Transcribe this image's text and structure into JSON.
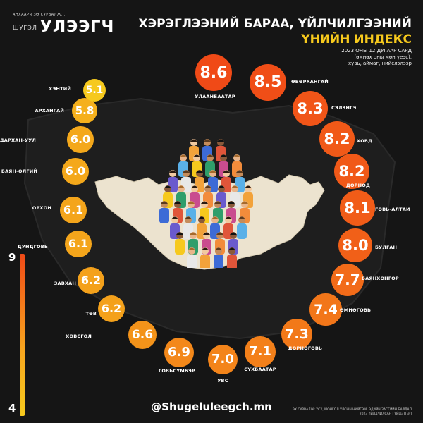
{
  "brand": {
    "tagline": "АНХААРЧ ЗӨ СУРВАЛЖ...",
    "prefix": "ШУГЭЛ",
    "name": "УЛЭЭГЧ"
  },
  "header": {
    "title_line1": "ХЭРЭГЛЭЭНИЙ БАРАА, ҮЙЛЧИЛГЭЭНИЙ",
    "title_line2": "ҮНИЙН ИНДЕКС",
    "subtitle_line1": "2023 ОНЫ 12 ДУГААР САРД",
    "subtitle_line2": "(өмнөх оны мөн үеэс),",
    "subtitle_line3": "хувь, аймаг, нийслэлээр"
  },
  "scale": {
    "max": "9",
    "min": "4"
  },
  "chart_data": {
    "type": "bubble",
    "title": "ХЭРЭГЛЭЭНИЙ БАРАА, ҮЙЛЧИЛГЭЭНИЙ ҮНИЙН ИНДЕКС",
    "unit": "хувь",
    "scale_range": [
      4,
      9
    ],
    "categories": [
      "УЛААНБААТАР",
      "ӨВӨРХАНГАЙ",
      "СЭЛЭНГЭ",
      "ХОВД",
      "ДОРНОД",
      "ГОВЬ-АЛТАЙ",
      "БУЛГАН",
      "БАЯНХОНГОР",
      "ӨМНӨГОВЬ",
      "ДОРНОГОВЬ",
      "СҮХБААТАР",
      "УВС",
      "ГОВЬСҮМБЭР",
      "ХӨВСГӨЛ",
      "ТӨВ",
      "ЗАВХАН",
      "ДУНДГОВЬ",
      "ОРХОН",
      "БАЯН-ӨЛГИЙ",
      "ДАРХАН-УУЛ",
      "АРХАНГАЙ",
      "ХЭНТИЙ"
    ],
    "values": [
      8.6,
      8.5,
      8.3,
      8.2,
      8.2,
      8.1,
      8.0,
      7.7,
      7.4,
      7.3,
      7.1,
      7.0,
      6.9,
      6.6,
      6.2,
      6.2,
      6.1,
      6.1,
      6.0,
      6.0,
      5.8,
      5.1
    ],
    "value_labels": [
      "8.6",
      "8.5",
      "8.3",
      "8.2",
      "8.2",
      "8.1",
      "8.0",
      "7.7",
      "7.4",
      "7.3",
      "7.1",
      "7.0",
      "6.9",
      "6.6",
      "6.2",
      "6.2",
      "6.1",
      "6.1",
      "6.0",
      "6.0",
      "5.8",
      "5.1"
    ]
  },
  "footer": {
    "handle": "@Shugeluleegch.mn",
    "source_line1": "ЭХ СУРВАЛЖ: ҮСХ, МОНГОЛ УЛСЫН НИЙГЭМ, ЭДИЙН ЗАСГИЙН БАЙДАЛ",
    "source_line2": "2023 ҮЙЛДЧИЛСАН ГҮЙЦЭТГЭЛ"
  },
  "colors": {
    "background": "#151515",
    "high": "#f04a17",
    "mid": "#f7891f",
    "low": "#f6c91d",
    "map": "#ece3cf"
  }
}
